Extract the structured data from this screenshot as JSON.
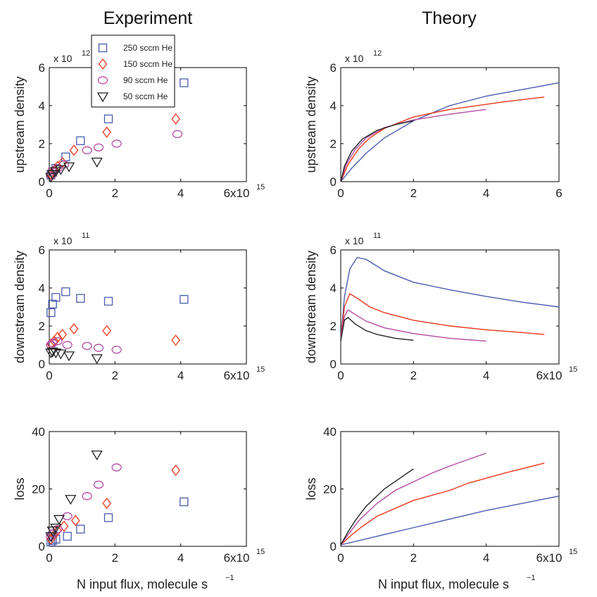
{
  "titles": {
    "experiment": "Experiment",
    "theory": "Theory"
  },
  "xlabel": "N input flux, molecule s",
  "xlabel_sup": "−1",
  "colors": {
    "250": "#4a5bb0",
    "150": "#e8391c",
    "90": "#b44aa0",
    "50": "#222222"
  },
  "legend": {
    "placement": "upper-left of top-left panel",
    "entries": [
      {
        "key": "250",
        "label": "250 sccm He",
        "marker": "square"
      },
      {
        "key": "150",
        "label": "150 sccm He",
        "marker": "diamond"
      },
      {
        "key": "90",
        "label": "90 sccm He",
        "marker": "circle"
      },
      {
        "key": "50",
        "label": "50 sccm He",
        "marker": "triangle-down"
      }
    ]
  },
  "chart_data": [
    {
      "id": "exp-upstream",
      "type": "scatter",
      "title": "",
      "ylabel": "upstream density",
      "exponent_label": "x 10",
      "exponent_sup": "12",
      "xlim": [
        0,
        6
      ],
      "ylim": [
        0,
        6
      ],
      "xticks": [
        "0",
        "2",
        "4",
        "6x10"
      ],
      "xtick_last_sup": "15",
      "yticks": [
        "0",
        "2",
        "4",
        "6"
      ],
      "series": [
        {
          "key": "250",
          "marker": "square",
          "points": [
            [
              0.05,
              0.35
            ],
            [
              0.1,
              0.5
            ],
            [
              0.2,
              0.7
            ],
            [
              0.5,
              1.3
            ],
            [
              0.95,
              2.15
            ],
            [
              1.8,
              3.3
            ],
            [
              4.1,
              5.2
            ]
          ]
        },
        {
          "key": "150",
          "marker": "diamond",
          "points": [
            [
              0.05,
              0.4
            ],
            [
              0.15,
              0.6
            ],
            [
              0.25,
              0.8
            ],
            [
              0.4,
              1.0
            ],
            [
              0.75,
              1.65
            ],
            [
              1.75,
              2.6
            ],
            [
              3.85,
              3.3
            ]
          ]
        },
        {
          "key": "90",
          "marker": "circle",
          "points": [
            [
              0.05,
              0.3
            ],
            [
              0.1,
              0.55
            ],
            [
              0.25,
              0.7
            ],
            [
              0.45,
              0.9
            ],
            [
              1.15,
              1.65
            ],
            [
              1.5,
              1.8
            ],
            [
              2.05,
              2.0
            ],
            [
              3.9,
              2.5
            ]
          ]
        },
        {
          "key": "50",
          "marker": "triangle-down",
          "points": [
            [
              0.05,
              0.25
            ],
            [
              0.1,
              0.4
            ],
            [
              0.2,
              0.55
            ],
            [
              0.35,
              0.65
            ],
            [
              0.6,
              0.8
            ],
            [
              1.45,
              1.05
            ]
          ]
        }
      ]
    },
    {
      "id": "theory-upstream",
      "type": "line",
      "title": "",
      "ylabel": "upstream density",
      "exponent_label": "x 10",
      "exponent_sup": "12",
      "xlim": [
        0,
        6
      ],
      "ylim": [
        0,
        6
      ],
      "xticks": [
        "0",
        "2",
        "4",
        "6"
      ],
      "xtick_last_sup": "",
      "yticks": [
        "0",
        "2",
        "4",
        "6"
      ],
      "series": [
        {
          "key": "250",
          "points": [
            [
              0,
              0
            ],
            [
              0.3,
              0.7
            ],
            [
              0.7,
              1.5
            ],
            [
              1.2,
              2.3
            ],
            [
              2,
              3.2
            ],
            [
              3,
              4.0
            ],
            [
              4,
              4.5
            ],
            [
              5,
              4.85
            ],
            [
              6,
              5.2
            ]
          ]
        },
        {
          "key": "150",
          "points": [
            [
              0,
              0
            ],
            [
              0.2,
              0.9
            ],
            [
              0.5,
              1.75
            ],
            [
              0.8,
              2.3
            ],
            [
              1.2,
              2.8
            ],
            [
              2,
              3.4
            ],
            [
              3,
              3.8
            ],
            [
              4.5,
              4.2
            ],
            [
              5.6,
              4.45
            ]
          ]
        },
        {
          "key": "90",
          "points": [
            [
              0,
              0
            ],
            [
              0.15,
              0.9
            ],
            [
              0.4,
              1.7
            ],
            [
              0.7,
              2.3
            ],
            [
              1.2,
              2.85
            ],
            [
              2,
              3.25
            ],
            [
              3,
              3.55
            ],
            [
              4,
              3.8
            ]
          ]
        },
        {
          "key": "50",
          "points": [
            [
              0,
              0
            ],
            [
              0.1,
              0.8
            ],
            [
              0.3,
              1.6
            ],
            [
              0.6,
              2.25
            ],
            [
              1.0,
              2.7
            ],
            [
              1.5,
              3.0
            ],
            [
              2,
              3.2
            ]
          ]
        }
      ]
    },
    {
      "id": "exp-downstream",
      "type": "scatter",
      "title": "",
      "ylabel": "downstream density",
      "exponent_label": "x 10",
      "exponent_sup": "11",
      "xlim": [
        0,
        6
      ],
      "ylim": [
        0,
        6
      ],
      "xticks": [
        "0",
        "2",
        "4",
        "6x10"
      ],
      "xtick_last_sup": "15",
      "yticks": [
        "0",
        "2",
        "4",
        "6"
      ],
      "series": [
        {
          "key": "250",
          "marker": "square",
          "points": [
            [
              0.05,
              2.7
            ],
            [
              0.1,
              3.15
            ],
            [
              0.2,
              3.5
            ],
            [
              0.5,
              3.8
            ],
            [
              0.95,
              3.45
            ],
            [
              1.8,
              3.3
            ],
            [
              4.1,
              3.4
            ]
          ]
        },
        {
          "key": "150",
          "marker": "diamond",
          "points": [
            [
              0.05,
              1.05
            ],
            [
              0.15,
              1.2
            ],
            [
              0.25,
              1.4
            ],
            [
              0.4,
              1.55
            ],
            [
              0.75,
              1.85
            ],
            [
              1.75,
              1.75
            ],
            [
              3.85,
              1.25
            ]
          ]
        },
        {
          "key": "90",
          "marker": "circle",
          "points": [
            [
              0.05,
              1.0
            ],
            [
              0.1,
              1.1
            ],
            [
              0.25,
              1.2
            ],
            [
              0.55,
              1.0
            ],
            [
              1.15,
              0.95
            ],
            [
              1.5,
              0.85
            ],
            [
              2.05,
              0.75
            ]
          ]
        },
        {
          "key": "50",
          "marker": "triangle-down",
          "points": [
            [
              0.05,
              0.6
            ],
            [
              0.1,
              0.65
            ],
            [
              0.2,
              0.6
            ],
            [
              0.35,
              0.55
            ],
            [
              0.6,
              0.45
            ],
            [
              1.45,
              0.3
            ]
          ]
        }
      ]
    },
    {
      "id": "theory-downstream",
      "type": "line",
      "title": "",
      "ylabel": "downstream density",
      "exponent_label": "x 10",
      "exponent_sup": "11",
      "xlim": [
        0,
        6
      ],
      "ylim": [
        0,
        6
      ],
      "xticks": [
        "0",
        "2",
        "4",
        "6x10"
      ],
      "xtick_last_sup": "15",
      "yticks": [
        "0",
        "2",
        "4",
        "6"
      ],
      "series": [
        {
          "key": "250",
          "points": [
            [
              0,
              1.3
            ],
            [
              0.1,
              3.5
            ],
            [
              0.25,
              5.0
            ],
            [
              0.45,
              5.6
            ],
            [
              0.7,
              5.5
            ],
            [
              1.2,
              4.9
            ],
            [
              2,
              4.3
            ],
            [
              3,
              3.9
            ],
            [
              4,
              3.55
            ],
            [
              5,
              3.25
            ],
            [
              6,
              3.0
            ]
          ]
        },
        {
          "key": "150",
          "points": [
            [
              0,
              1.3
            ],
            [
              0.1,
              3.0
            ],
            [
              0.25,
              3.7
            ],
            [
              0.5,
              3.4
            ],
            [
              0.8,
              3.0
            ],
            [
              1.2,
              2.7
            ],
            [
              2,
              2.3
            ],
            [
              3,
              2.0
            ],
            [
              4,
              1.8
            ],
            [
              5,
              1.65
            ],
            [
              5.6,
              1.55
            ]
          ]
        },
        {
          "key": "90",
          "points": [
            [
              0,
              1.3
            ],
            [
              0.1,
              2.5
            ],
            [
              0.2,
              2.85
            ],
            [
              0.4,
              2.6
            ],
            [
              0.7,
              2.25
            ],
            [
              1.2,
              1.9
            ],
            [
              2,
              1.6
            ],
            [
              3,
              1.35
            ],
            [
              4,
              1.2
            ]
          ]
        },
        {
          "key": "50",
          "points": [
            [
              0,
              1.2
            ],
            [
              0.1,
              2.3
            ],
            [
              0.2,
              2.45
            ],
            [
              0.4,
              2.1
            ],
            [
              0.7,
              1.75
            ],
            [
              1.0,
              1.55
            ],
            [
              1.5,
              1.35
            ],
            [
              2,
              1.25
            ]
          ]
        }
      ]
    },
    {
      "id": "exp-loss",
      "type": "scatter",
      "title": "",
      "ylabel": "loss",
      "exponent_label": "",
      "exponent_sup": "",
      "xlim": [
        0,
        6
      ],
      "ylim": [
        0,
        40
      ],
      "xticks": [
        "0",
        "2",
        "4",
        "6x10"
      ],
      "xtick_last_sup": "15",
      "yticks": [
        "0",
        "20",
        "40"
      ],
      "series": [
        {
          "key": "250",
          "marker": "square",
          "points": [
            [
              0.05,
              1.5
            ],
            [
              0.1,
              2.0
            ],
            [
              0.2,
              2.5
            ],
            [
              0.55,
              3.5
            ],
            [
              0.95,
              6.0
            ],
            [
              1.8,
              10.0
            ],
            [
              4.1,
              15.5
            ]
          ]
        },
        {
          "key": "150",
          "marker": "diamond",
          "points": [
            [
              0.05,
              2.5
            ],
            [
              0.15,
              4.0
            ],
            [
              0.25,
              5.5
            ],
            [
              0.45,
              7.0
            ],
            [
              0.8,
              9.0
            ],
            [
              1.75,
              15.0
            ],
            [
              3.85,
              26.5
            ]
          ]
        },
        {
          "key": "90",
          "marker": "circle",
          "points": [
            [
              0.05,
              3.5
            ],
            [
              0.1,
              4.5
            ],
            [
              0.25,
              6.0
            ],
            [
              0.55,
              10.5
            ],
            [
              1.15,
              17.5
            ],
            [
              1.5,
              21.5
            ],
            [
              2.05,
              27.5
            ]
          ]
        },
        {
          "key": "50",
          "marker": "triangle-down",
          "points": [
            [
              0.05,
              3.5
            ],
            [
              0.1,
              5.5
            ],
            [
              0.2,
              6.5
            ],
            [
              0.3,
              9.5
            ],
            [
              0.65,
              16.5
            ],
            [
              1.45,
              32.0
            ]
          ]
        }
      ]
    },
    {
      "id": "theory-loss",
      "type": "line",
      "title": "",
      "ylabel": "loss",
      "exponent_label": "",
      "exponent_sup": "",
      "xlim": [
        0,
        6
      ],
      "ylim": [
        0,
        40
      ],
      "xticks": [
        "0",
        "2",
        "4",
        "6x10"
      ],
      "xtick_last_sup": "15",
      "yticks": [
        "0",
        "20",
        "40"
      ],
      "series": [
        {
          "key": "250",
          "points": [
            [
              0,
              0.5
            ],
            [
              0.5,
              2.0
            ],
            [
              1,
              3.5
            ],
            [
              2,
              6.5
            ],
            [
              3,
              9.5
            ],
            [
              4,
              12.5
            ],
            [
              5,
              15.0
            ],
            [
              6,
              17.5
            ]
          ]
        },
        {
          "key": "150",
          "points": [
            [
              0,
              0.5
            ],
            [
              0.3,
              4.0
            ],
            [
              0.6,
              7.0
            ],
            [
              1,
              10.5
            ],
            [
              2,
              16.0
            ],
            [
              3,
              19.5
            ],
            [
              3.5,
              22.0
            ],
            [
              4.5,
              25.5
            ],
            [
              5.6,
              29.0
            ]
          ]
        },
        {
          "key": "90",
          "points": [
            [
              0,
              0.5
            ],
            [
              0.2,
              4.0
            ],
            [
              0.5,
              9.0
            ],
            [
              1,
              15.0
            ],
            [
              1.5,
              19.5
            ],
            [
              2.5,
              25.5
            ],
            [
              3,
              28.0
            ],
            [
              4,
              32.5
            ]
          ]
        },
        {
          "key": "50",
          "points": [
            [
              0,
              0.5
            ],
            [
              0.2,
              5.0
            ],
            [
              0.4,
              9.0
            ],
            [
              0.7,
              14.0
            ],
            [
              1.2,
              20.0
            ],
            [
              1.6,
              23.5
            ],
            [
              2,
              27.0
            ]
          ]
        }
      ]
    }
  ]
}
